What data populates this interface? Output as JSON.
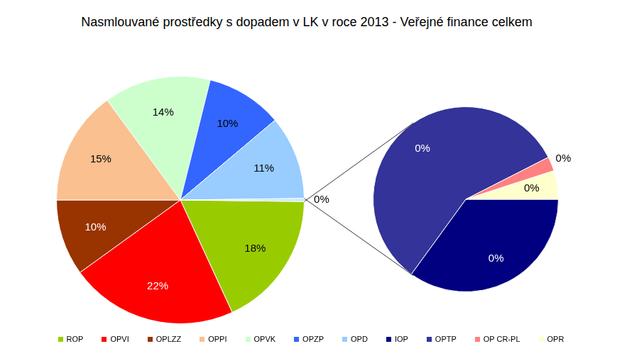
{
  "chart_data": [
    {
      "type": "pie",
      "title": "Nasmlouvané prostředky s dopadem v LK v roce 2013 - Veřejné finance celkem",
      "categories": [
        "ROP",
        "OPVI",
        "OPLZZ",
        "OPPI",
        "OPVK",
        "OPZP",
        "OPD",
        null
      ],
      "values": [
        18,
        22,
        10,
        15,
        14,
        10,
        11,
        0.4
      ],
      "value_labels": [
        "18%",
        "22%",
        "10%",
        "15%",
        "14%",
        "10%",
        "11%",
        "0%"
      ],
      "colors": [
        "#99cc00",
        "#ff0000",
        "#993300",
        "#fac090",
        "#ccffcc",
        "#3366ff",
        "#99ccff",
        "#cce8ff"
      ],
      "data_labels": true,
      "legend": "bottom"
    },
    {
      "type": "pie",
      "categories": [
        "IOP",
        "OPTP",
        "OP CR-PL",
        "OPR"
      ],
      "values": [
        0.14,
        0.23,
        0.01,
        0.02
      ],
      "value_labels": [
        "0%",
        "0%",
        "0%",
        "0%"
      ],
      "colors": [
        "#000080",
        "#333399",
        "#ff8080",
        "#ffffcc"
      ],
      "data_labels": true
    }
  ]
}
